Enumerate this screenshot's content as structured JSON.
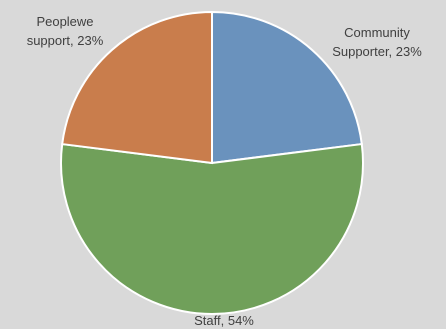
{
  "chart_data": {
    "type": "pie",
    "title": "",
    "legend": "none",
    "start_angle_deg": 0,
    "direction": "clockwise",
    "slices": [
      {
        "name": "Community Supporter",
        "value": 23,
        "label_lines": [
          "Community",
          "Supporter, 23%"
        ],
        "color": "#6a92bd"
      },
      {
        "name": "Staff",
        "value": 54,
        "label_lines": [
          "Staff, 54%"
        ],
        "color": "#70a05a"
      },
      {
        "name": "People we support",
        "value": 23,
        "label_lines": [
          "Peoplewe",
          "support, 23%"
        ],
        "color": "#c97d4c"
      }
    ]
  }
}
